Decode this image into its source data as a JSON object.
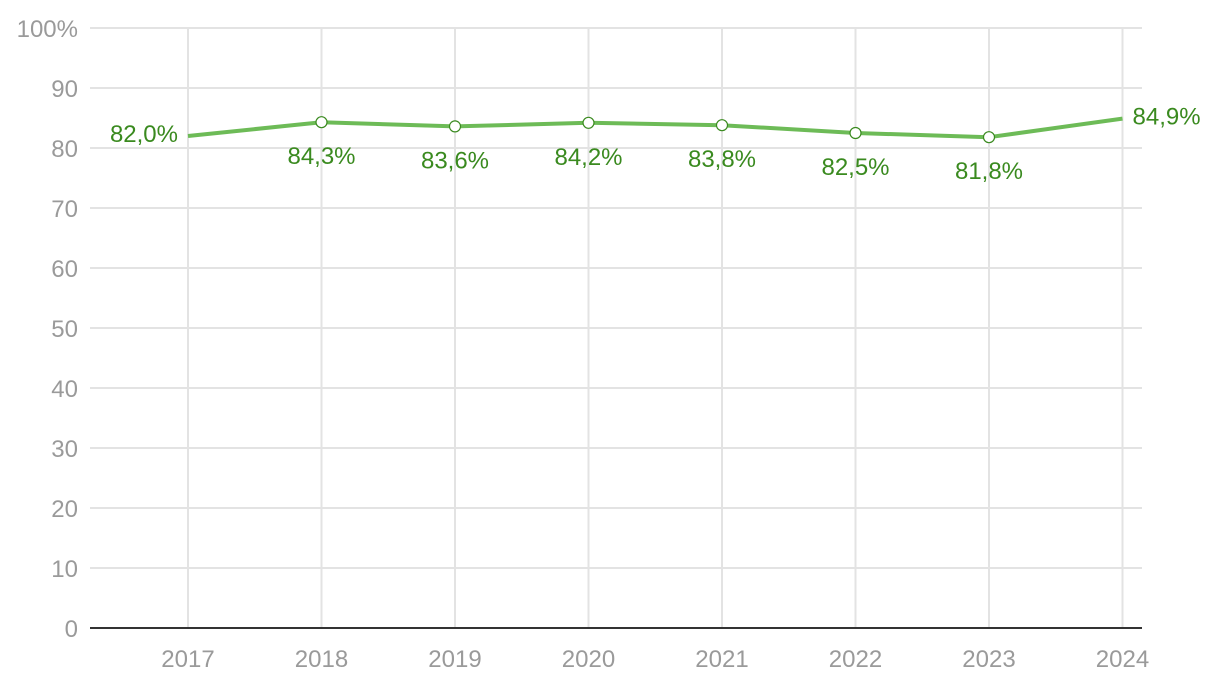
{
  "chart_data": {
    "type": "line",
    "title": "",
    "xlabel": "",
    "ylabel": "",
    "x": [
      "2017",
      "2018",
      "2019",
      "2020",
      "2021",
      "2022",
      "2023",
      "2024"
    ],
    "series": [
      {
        "values": [
          82.0,
          84.3,
          83.6,
          84.2,
          83.8,
          82.5,
          81.8,
          84.9
        ],
        "labels": [
          "82,0%",
          "84,3%",
          "83,6%",
          "84,2%",
          "83,8%",
          "82,5%",
          "81,8%",
          "84,9%"
        ]
      }
    ],
    "ylim": [
      0,
      100
    ],
    "yticks": [
      "0",
      "10",
      "20",
      "30",
      "40",
      "50",
      "60",
      "70",
      "80",
      "90",
      "100%"
    ],
    "grid": true,
    "legend": "none",
    "colors": {
      "line": "#6dbb57",
      "label": "#3a8a1f",
      "grid": "#e3e3e3",
      "axis": "#333333",
      "tick_text": "#9a9a9a"
    }
  }
}
